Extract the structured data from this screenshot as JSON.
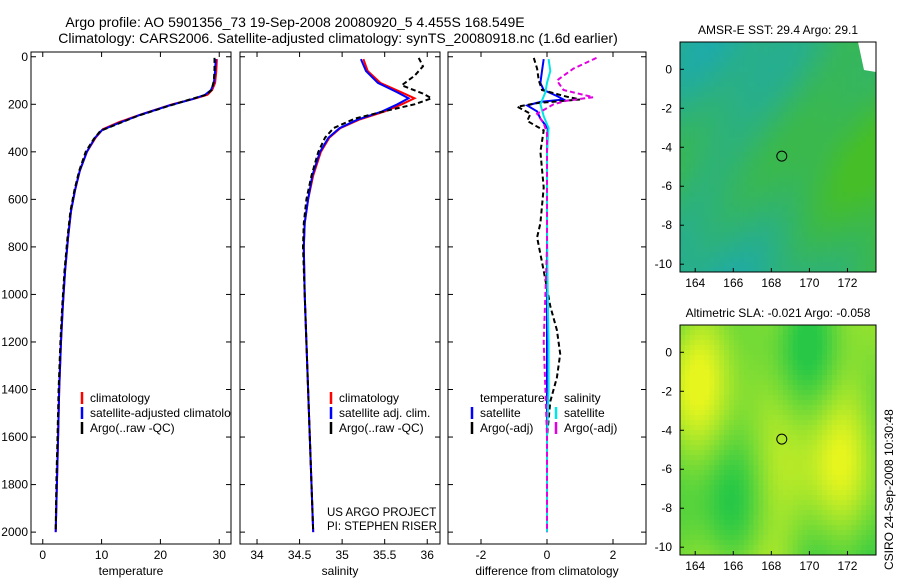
{
  "header": {
    "line1": "Argo profile: AO 5901356_73 19-Sep-2008 20080920_5 4.455S 168.549E",
    "line2": "Climatology: CARS2006. Satellite-adjusted climatology: synTS_20080918.nc (1.6d earlier)"
  },
  "side_label": "CSIRO 24-Sep-2008 10:30:48",
  "colors": {
    "climatology": "#ff0000",
    "satellite": "#0000ff",
    "argo": "#000000",
    "sat_salinity": "#00e5e5",
    "argo_adj_salinity": "#e000e0"
  },
  "chart_data": [
    {
      "type": "line",
      "xlabel": "temperature",
      "xlim": [
        -2,
        32
      ],
      "ylim": [
        2050,
        -20
      ],
      "xticks": [
        0,
        10,
        20,
        30
      ],
      "yticks": [
        0,
        200,
        400,
        600,
        800,
        1000,
        1200,
        1400,
        1600,
        1800,
        2000
      ],
      "legend": [
        "climatology",
        "satellite-adjusted climatolo",
        "Argo(..raw -QC)"
      ],
      "series": [
        {
          "name": "climatology",
          "color": "red",
          "dash": "",
          "points": [
            [
              29.6,
              10
            ],
            [
              29.5,
              60
            ],
            [
              29.3,
              110
            ],
            [
              28.8,
              140
            ],
            [
              28.0,
              160
            ],
            [
              26,
              175
            ],
            [
              22,
              200
            ],
            [
              17,
              240
            ],
            [
              13,
              275
            ],
            [
              10.2,
              305
            ],
            [
              9,
              340
            ],
            [
              7.5,
              400
            ],
            [
              6.3,
              480
            ],
            [
              5.5,
              560
            ],
            [
              4.8,
              650
            ],
            [
              4.3,
              760
            ],
            [
              3.8,
              900
            ],
            [
              3.4,
              1050
            ],
            [
              3.1,
              1200
            ],
            [
              2.8,
              1400
            ],
            [
              2.6,
              1600
            ],
            [
              2.4,
              1800
            ],
            [
              2.2,
              2000
            ]
          ]
        },
        {
          "name": "satellite-adjusted climatolo",
          "color": "blue",
          "dash": "",
          "points": [
            [
              29.4,
              10
            ],
            [
              29.3,
              60
            ],
            [
              29.1,
              110
            ],
            [
              28.6,
              140
            ],
            [
              27.6,
              160
            ],
            [
              25.5,
              178
            ],
            [
              21.5,
              205
            ],
            [
              16.5,
              245
            ],
            [
              12.8,
              280
            ],
            [
              10.1,
              308
            ],
            [
              8.9,
              340
            ],
            [
              7.5,
              400
            ],
            [
              6.3,
              480
            ],
            [
              5.5,
              560
            ],
            [
              4.8,
              650
            ],
            [
              4.3,
              760
            ],
            [
              3.8,
              900
            ],
            [
              3.4,
              1050
            ],
            [
              3.1,
              1200
            ],
            [
              2.8,
              1400
            ],
            [
              2.6,
              1600
            ],
            [
              2.4,
              1800
            ],
            [
              2.2,
              2000
            ]
          ]
        },
        {
          "name": "Argo(..raw -QC)",
          "color": "black",
          "dash": "5,3",
          "points": [
            [
              29.2,
              5
            ],
            [
              29.2,
              50
            ],
            [
              29.1,
              100
            ],
            [
              28.7,
              140
            ],
            [
              27.8,
              160
            ],
            [
              25,
              180
            ],
            [
              21,
              210
            ],
            [
              16,
              250
            ],
            [
              12.5,
              285
            ],
            [
              9.8,
              312
            ],
            [
              8.7,
              345
            ],
            [
              7.3,
              400
            ],
            [
              6.2,
              480
            ],
            [
              5.4,
              560
            ],
            [
              4.7,
              650
            ],
            [
              4.2,
              760
            ],
            [
              3.7,
              900
            ],
            [
              3.3,
              1050
            ],
            [
              3.0,
              1200
            ],
            [
              2.7,
              1400
            ],
            [
              2.5,
              1600
            ],
            [
              2.3,
              1800
            ],
            [
              2.2,
              1990
            ]
          ]
        }
      ]
    },
    {
      "type": "line",
      "xlabel": "salinity",
      "xlim": [
        33.8,
        36.15
      ],
      "ylim": [
        2050,
        -20
      ],
      "xticks": [
        34,
        34.5,
        35,
        35.5,
        36
      ],
      "xticklabels": [
        "34",
        "34.5",
        "35",
        "35.5",
        "36"
      ],
      "legend": [
        "climatology",
        "satellite adj. clim.",
        "Argo(..raw -QC)"
      ],
      "series": [
        {
          "name": "climatology",
          "color": "red",
          "dash": "",
          "points": [
            [
              35.25,
              10
            ],
            [
              35.3,
              60
            ],
            [
              35.45,
              110
            ],
            [
              35.7,
              150
            ],
            [
              35.85,
              175
            ],
            [
              35.7,
              200
            ],
            [
              35.5,
              230
            ],
            [
              35.2,
              265
            ],
            [
              34.98,
              300
            ],
            [
              34.85,
              340
            ],
            [
              34.75,
              400
            ],
            [
              34.66,
              500
            ],
            [
              34.6,
              600
            ],
            [
              34.56,
              700
            ],
            [
              34.55,
              800
            ],
            [
              34.56,
              1000
            ],
            [
              34.58,
              1200
            ],
            [
              34.6,
              1400
            ],
            [
              34.62,
              1600
            ],
            [
              34.64,
              1800
            ],
            [
              34.66,
              2000
            ]
          ]
        },
        {
          "name": "satellite adj. clim.",
          "color": "blue",
          "dash": "",
          "points": [
            [
              35.22,
              10
            ],
            [
              35.28,
              60
            ],
            [
              35.42,
              110
            ],
            [
              35.65,
              150
            ],
            [
              35.78,
              175
            ],
            [
              35.65,
              200
            ],
            [
              35.47,
              230
            ],
            [
              35.18,
              265
            ],
            [
              34.97,
              300
            ],
            [
              34.84,
              340
            ],
            [
              34.74,
              400
            ],
            [
              34.65,
              500
            ],
            [
              34.6,
              600
            ],
            [
              34.56,
              700
            ],
            [
              34.55,
              800
            ],
            [
              34.56,
              1000
            ],
            [
              34.58,
              1200
            ],
            [
              34.6,
              1400
            ],
            [
              34.62,
              1600
            ],
            [
              34.64,
              1800
            ],
            [
              34.66,
              2000
            ]
          ]
        },
        {
          "name": "Argo(..raw -QC)",
          "color": "black",
          "dash": "5,3",
          "points": [
            [
              35.9,
              5
            ],
            [
              35.95,
              40
            ],
            [
              35.85,
              80
            ],
            [
              35.7,
              120
            ],
            [
              35.95,
              155
            ],
            [
              36.05,
              175
            ],
            [
              35.85,
              200
            ],
            [
              35.55,
              225
            ],
            [
              35.15,
              260
            ],
            [
              34.9,
              300
            ],
            [
              34.8,
              340
            ],
            [
              34.72,
              400
            ],
            [
              34.64,
              500
            ],
            [
              34.58,
              600
            ],
            [
              34.55,
              700
            ],
            [
              34.54,
              800
            ],
            [
              34.56,
              1000
            ],
            [
              34.58,
              1200
            ],
            [
              34.6,
              1400
            ],
            [
              34.62,
              1600
            ],
            [
              34.64,
              1800
            ],
            [
              34.66,
              2000
            ]
          ]
        }
      ],
      "annotation": [
        "US ARGO PROJECT",
        "PI: STEPHEN RISER"
      ]
    },
    {
      "type": "line",
      "xlabel": "difference from climatology",
      "xlim": [
        -3,
        3
      ],
      "ylim": [
        2050,
        -20
      ],
      "xticks": [
        -2,
        0,
        2
      ],
      "legend_groups": [
        {
          "title": "temperature",
          "entries": [
            "satellite",
            "Argo(-adj)"
          ]
        },
        {
          "title": "salinity",
          "entries": [
            "satellite",
            "Argo(-adj)"
          ]
        }
      ],
      "series": [
        {
          "name": "temperature satellite",
          "color": "blue",
          "dash": "",
          "points": [
            [
              -0.1,
              10
            ],
            [
              -0.15,
              60
            ],
            [
              -0.2,
              110
            ],
            [
              -0.1,
              140
            ],
            [
              0.3,
              165
            ],
            [
              0.5,
              180
            ],
            [
              -0.2,
              190
            ],
            [
              -0.6,
              205
            ],
            [
              -0.3,
              230
            ],
            [
              -0.2,
              260
            ],
            [
              0.02,
              300
            ],
            [
              0.0,
              400
            ],
            [
              0.0,
              600
            ],
            [
              0.0,
              1000
            ],
            [
              0.0,
              1500
            ],
            [
              0.0,
              2000
            ]
          ]
        },
        {
          "name": "temperature Argo(-adj)",
          "color": "black",
          "dash": "5,3",
          "points": [
            [
              -0.4,
              5
            ],
            [
              -0.3,
              50
            ],
            [
              -0.25,
              100
            ],
            [
              -0.15,
              140
            ],
            [
              0.6,
              168
            ],
            [
              1.0,
              180
            ],
            [
              -0.3,
              195
            ],
            [
              -0.9,
              210
            ],
            [
              -0.5,
              240
            ],
            [
              -0.6,
              270
            ],
            [
              -0.1,
              310
            ],
            [
              -0.2,
              400
            ],
            [
              -0.1,
              550
            ],
            [
              -0.2,
              700
            ],
            [
              -0.3,
              760
            ],
            [
              -0.1,
              900
            ],
            [
              0.1,
              1050
            ],
            [
              0.3,
              1150
            ],
            [
              0.4,
              1250
            ],
            [
              0.3,
              1350
            ],
            [
              0.1,
              1450
            ],
            [
              0.0,
              1600
            ],
            [
              0.0,
              2000
            ]
          ]
        },
        {
          "name": "salinity satellite",
          "color": "cyan",
          "dash": "",
          "points": [
            [
              0.05,
              10
            ],
            [
              0.1,
              60
            ],
            [
              0.0,
              110
            ],
            [
              -0.05,
              150
            ],
            [
              -0.2,
              200
            ],
            [
              -0.1,
              250
            ],
            [
              0.05,
              300
            ],
            [
              0.0,
              400
            ],
            [
              0.0,
              700
            ],
            [
              0.02,
              1000
            ],
            [
              0.05,
              1200
            ],
            [
              0.05,
              1400
            ],
            [
              0.0,
              1600
            ],
            [
              0.0,
              2000
            ]
          ]
        },
        {
          "name": "salinity Argo(-adj)",
          "color": "magenta",
          "dash": "5,3",
          "points": [
            [
              1.5,
              5
            ],
            [
              0.8,
              50
            ],
            [
              0.3,
              100
            ],
            [
              0.5,
              140
            ],
            [
              1.4,
              170
            ],
            [
              0.6,
              185
            ],
            [
              0.2,
              200
            ],
            [
              -0.3,
              240
            ],
            [
              -0.1,
              280
            ],
            [
              0.0,
              320
            ],
            [
              0.0,
              500
            ],
            [
              0.0,
              800
            ],
            [
              -0.05,
              1000
            ],
            [
              -0.1,
              1200
            ],
            [
              -0.05,
              1400
            ],
            [
              0.0,
              1600
            ],
            [
              0.0,
              2000
            ]
          ]
        }
      ]
    },
    {
      "type": "heatmap",
      "title": "AMSR-E SST: 29.4 Argo: 29.1",
      "xlim": [
        163.2,
        173.5
      ],
      "ylim": [
        -10.4,
        1.4
      ],
      "xticks": [
        164,
        166,
        168,
        170,
        172
      ],
      "yticks": [
        0,
        -2,
        -4,
        -6,
        -8,
        -10
      ],
      "marker": [
        168.549,
        -4.455
      ]
    },
    {
      "type": "heatmap",
      "title": "Altimetric SLA: -0.021 Argo: -0.058",
      "xlim": [
        163.2,
        173.5
      ],
      "ylim": [
        -10.4,
        1.4
      ],
      "xticks": [
        164,
        166,
        168,
        170,
        172
      ],
      "yticks": [
        0,
        -2,
        -4,
        -6,
        -8,
        -10
      ],
      "marker": [
        168.549,
        -4.455
      ]
    }
  ]
}
